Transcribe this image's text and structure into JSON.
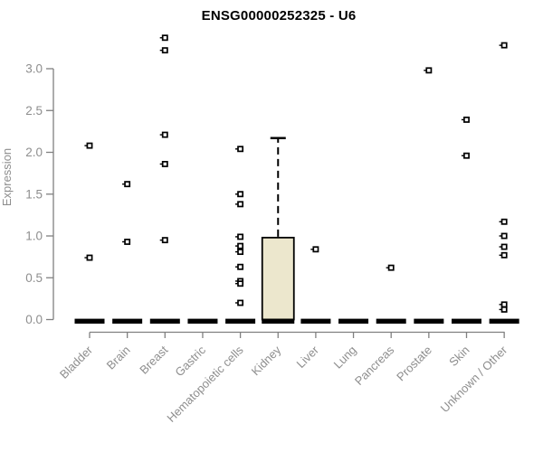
{
  "page": {
    "background": "#ffffff"
  },
  "chart_data": {
    "type": "boxplot",
    "title": "ENSG00000252325 - U6",
    "ylabel": "Expression",
    "xlabel": "",
    "ylim": [
      0,
      3.45
    ],
    "yticks": [
      0,
      0.5,
      1,
      1.5,
      2,
      2.5,
      3
    ],
    "ytick_labels": [
      "0.0",
      "0.5",
      "1.0",
      "1.5",
      "2.0",
      "2.5",
      "3.0"
    ],
    "grid": false,
    "legend": null,
    "categories": [
      "Bladder",
      "Brain",
      "Breast",
      "Gastric",
      "Hematopoietic cells",
      "Kidney",
      "Liver",
      "Lung",
      "Pancreas",
      "Prostate",
      "Skin",
      "Unknown / Other"
    ],
    "boxes": [
      {
        "category": "Bladder",
        "median": 0,
        "q1": 0,
        "q3": 0,
        "whisker_low": 0,
        "whisker_high": 0,
        "outliers": [
          2.08,
          0.74
        ]
      },
      {
        "category": "Brain",
        "median": 0,
        "q1": 0,
        "q3": 0,
        "whisker_low": 0,
        "whisker_high": 0,
        "outliers": [
          1.62,
          0.93
        ]
      },
      {
        "category": "Breast",
        "median": 0,
        "q1": 0,
        "q3": 0,
        "whisker_low": 0,
        "whisker_high": 0,
        "outliers": [
          3.37,
          3.22,
          2.21,
          1.86,
          0.95
        ]
      },
      {
        "category": "Gastric",
        "median": 0,
        "q1": 0,
        "q3": 0,
        "whisker_low": 0,
        "whisker_high": 0,
        "outliers": []
      },
      {
        "category": "Hematopoietic cells",
        "median": 0,
        "q1": 0,
        "q3": 0,
        "whisker_low": 0,
        "whisker_high": 0,
        "outliers": [
          2.04,
          1.5,
          1.38,
          0.99,
          0.88,
          0.81,
          0.63,
          0.46,
          0.43,
          0.2
        ]
      },
      {
        "category": "Kidney",
        "median": 0,
        "q1": 0,
        "q3": 0.98,
        "whisker_low": 0,
        "whisker_high": 2.17,
        "outliers": []
      },
      {
        "category": "Liver",
        "median": 0,
        "q1": 0,
        "q3": 0,
        "whisker_low": 0,
        "whisker_high": 0,
        "outliers": [
          0.84
        ]
      },
      {
        "category": "Lung",
        "median": 0,
        "q1": 0,
        "q3": 0,
        "whisker_low": 0,
        "whisker_high": 0,
        "outliers": []
      },
      {
        "category": "Pancreas",
        "median": 0,
        "q1": 0,
        "q3": 0,
        "whisker_low": 0,
        "whisker_high": 0,
        "outliers": [
          0.62
        ]
      },
      {
        "category": "Prostate",
        "median": 0,
        "q1": 0,
        "q3": 0,
        "whisker_low": 0,
        "whisker_high": 0,
        "outliers": [
          2.98
        ]
      },
      {
        "category": "Skin",
        "median": 0,
        "q1": 0,
        "q3": 0,
        "whisker_low": 0,
        "whisker_high": 0,
        "outliers": [
          2.39,
          1.96
        ]
      },
      {
        "category": "Unknown / Other",
        "median": 0,
        "q1": 0,
        "q3": 0,
        "whisker_low": 0,
        "whisker_high": 0,
        "outliers": [
          3.28,
          1.17,
          1.0,
          0.87,
          0.77,
          0.18,
          0.12
        ]
      }
    ],
    "colors": {
      "box_fill": "#ECE7CD",
      "box_stroke": "#000000",
      "median": "#000000",
      "axis_line": "#808080",
      "tick_text": "#8e8e8e",
      "title_text": "#000000",
      "outlier_stroke": "#000000",
      "outlier_fill": "#ffffff"
    }
  }
}
